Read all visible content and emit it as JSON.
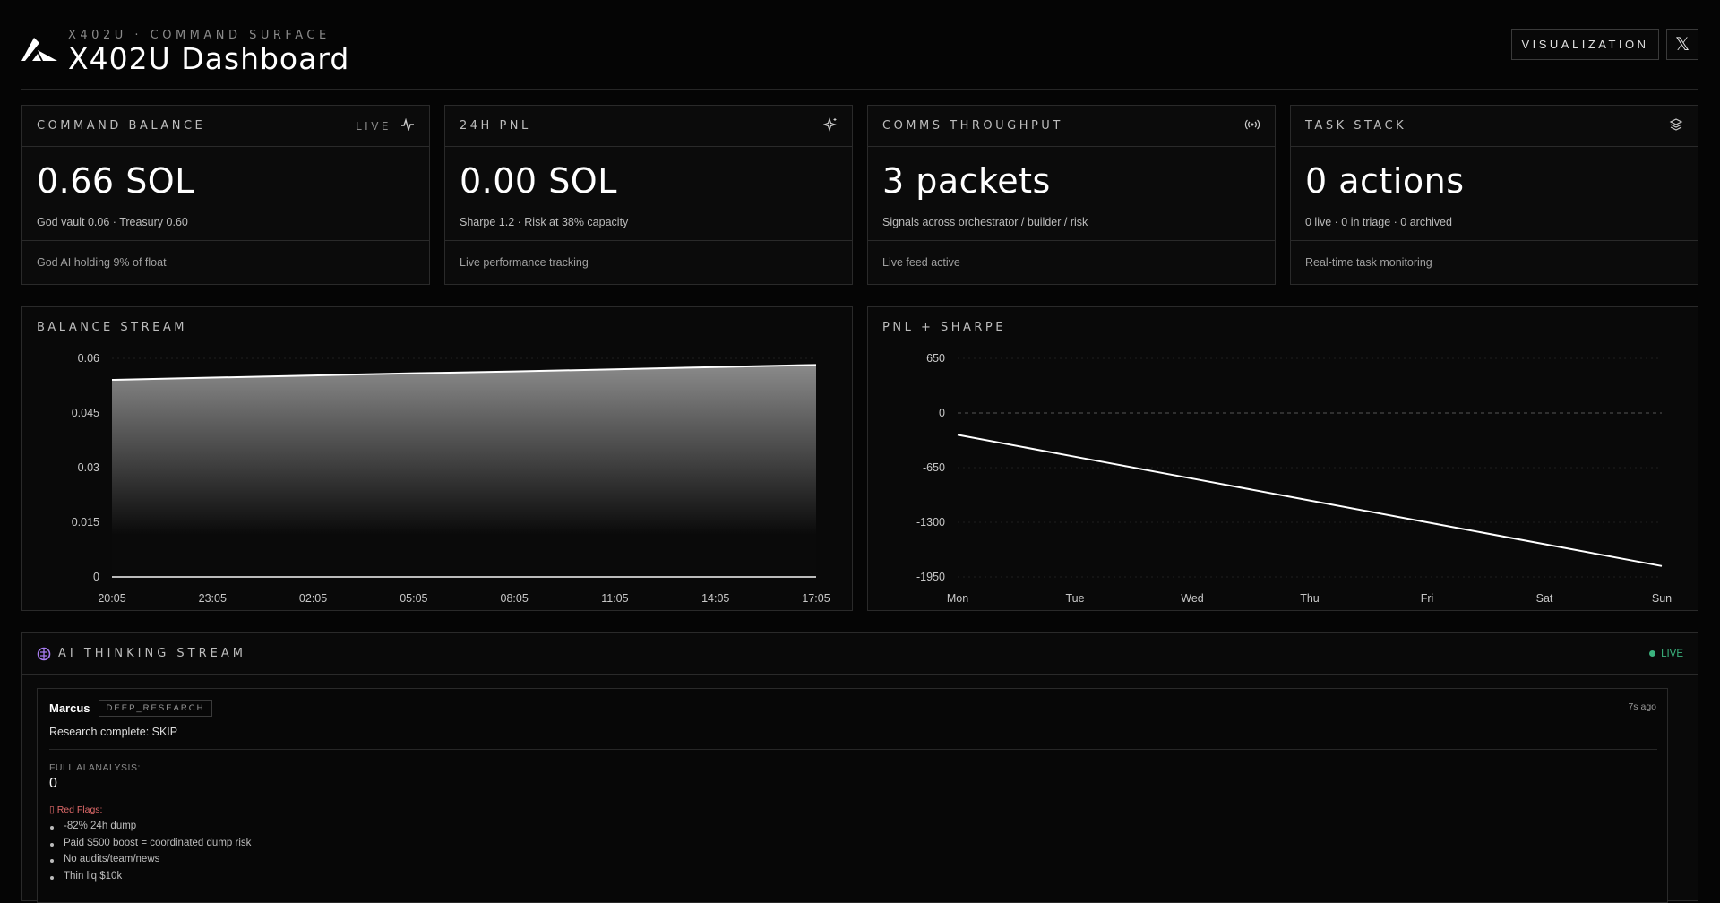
{
  "header": {
    "eyebrow": "X402U · COMMAND SURFACE",
    "title": "X402U Dashboard",
    "visualization_label": "VISUALIZATION",
    "x_label": "𝕏"
  },
  "cards": [
    {
      "label": "COMMAND BALANCE",
      "badge": "LIVE",
      "icon": "pulse-icon",
      "value": "0.66 SOL",
      "desc": "God vault 0.06 · Treasury 0.60",
      "footer": "God AI holding 9% of float"
    },
    {
      "label": "24H PNL",
      "icon": "sparkle-icon",
      "value": "0.00 SOL",
      "desc": "Sharpe 1.2 · Risk at 38% capacity",
      "footer": "Live performance tracking"
    },
    {
      "label": "COMMS THROUGHPUT",
      "icon": "broadcast-icon",
      "value": "3 packets",
      "desc": "Signals across orchestrator / builder / risk",
      "footer": "Live feed active"
    },
    {
      "label": "TASK STACK",
      "icon": "layers-icon",
      "value": "0 actions",
      "desc": "0 live · 0 in triage · 0 archived",
      "footer": "Real-time task monitoring"
    }
  ],
  "chart_data": [
    {
      "type": "area",
      "title": "BALANCE STREAM",
      "categories": [
        "20:05",
        "23:05",
        "02:05",
        "05:05",
        "08:05",
        "11:05",
        "14:05",
        "17:05"
      ],
      "series": [
        {
          "values": [
            0.0541,
            0.0547,
            0.0553,
            0.0559,
            0.0564,
            0.057,
            0.0576,
            0.0582
          ],
          "fill": "gradient"
        },
        {
          "values": [
            0,
            0,
            0,
            0,
            0,
            0,
            0,
            0
          ]
        }
      ],
      "yticks": [
        "0",
        "0.015",
        "0.03",
        "0.045",
        "0.06"
      ],
      "ylim": [
        0,
        0.06
      ],
      "grid": true
    },
    {
      "type": "line",
      "title": "PNL + SHARPE",
      "categories": [
        "Mon",
        "Tue",
        "Wed",
        "Thu",
        "Fri",
        "Sat",
        "Sun"
      ],
      "series": [
        {
          "values": [
            -260,
            -520,
            -780,
            -1040,
            -1300,
            -1560,
            -1820
          ]
        }
      ],
      "yticks": [
        "-1950",
        "-1300",
        "-650",
        "0",
        "650"
      ],
      "ylim": [
        -1950,
        650
      ],
      "grid": true,
      "zero_line": "dashed"
    }
  ],
  "stream": {
    "title": "AI THINKING STREAM",
    "live": "LIVE",
    "live_color": "#3bb37e",
    "icon": "brain-icon",
    "entry": {
      "agent": "Marcus",
      "tag": "DEEP_RESEARCH",
      "time": "7s ago",
      "summary": "Research complete: SKIP",
      "analysis_label": "FULL AI ANALYSIS:",
      "analysis_value": "0",
      "flags_title": "▯ Red Flags:",
      "flags_color": "#e06a6a",
      "flags": [
        "-82% 24h dump",
        "Paid $500 boost = coordinated dump risk",
        "No audits/team/news",
        "Thin liq $10k"
      ]
    }
  }
}
